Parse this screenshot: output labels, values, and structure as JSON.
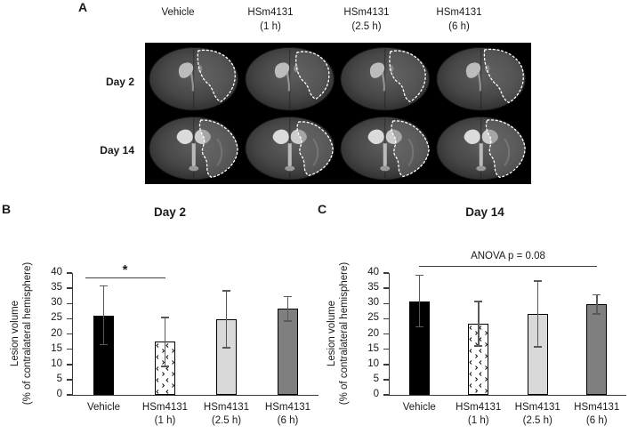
{
  "figure": {
    "panel_a": {
      "label": "A",
      "column_headers": [
        {
          "line1": "Vehicle",
          "line2": ""
        },
        {
          "line1": "HSm4131",
          "line2": "(1 h)"
        },
        {
          "line1": "HSm4131",
          "line2": "(2.5 h)"
        },
        {
          "line1": "HSm4131",
          "line2": "(6 h)"
        }
      ],
      "row_labels": [
        "Day 2",
        "Day 14"
      ]
    },
    "panel_b_label": "B",
    "panel_c_label": "C"
  },
  "colors": {
    "background": "#ffffff",
    "mri_background": "#000000",
    "lesion_outline": "#ffffff",
    "bar_vehicle": "#000000",
    "bar_1h_fill": "#ffffff",
    "bar_2_5h": "#d9d9d9",
    "bar_6h": "#7f7f7f",
    "axis": "#3a3a3a",
    "error_bar": "#595959",
    "text": "#000000"
  },
  "chart_data": [
    {
      "type": "bar",
      "panel": "B",
      "title": "Day 2",
      "ylabel_line1": "Lesion volume",
      "ylabel_line2": "(% of contralateral hemisphere)",
      "ylim": [
        0,
        40
      ],
      "yticks": [
        0,
        5,
        10,
        15,
        20,
        25,
        30,
        35,
        40
      ],
      "grid": false,
      "legend": null,
      "categories": [
        "Vehicle",
        "HSm4131 (1 h)",
        "HSm4131 (2.5 h)",
        "HSm4131 (6 h)"
      ],
      "values": [
        26.1,
        17.4,
        24.8,
        28.3
      ],
      "errors": [
        9.6,
        8.0,
        9.3,
        4.0
      ],
      "bar_styles": [
        "black",
        "pattern",
        "lightgray",
        "gray"
      ],
      "annotation": {
        "label": "*",
        "from_index": 0,
        "to_index": 1,
        "y_value": 38.5
      }
    },
    {
      "type": "bar",
      "panel": "C",
      "title": "Day 14",
      "ylabel_line1": "Lesion volume",
      "ylabel_line2": "(% of contralateral hemisphere)",
      "ylim": [
        0,
        40
      ],
      "yticks": [
        0,
        5,
        10,
        15,
        20,
        25,
        30,
        35,
        40
      ],
      "grid": false,
      "legend": null,
      "categories": [
        "Vehicle",
        "HSm4131 (1 h)",
        "HSm4131 (2.5 h)",
        "HSm4131 (6 h)"
      ],
      "values": [
        30.8,
        23.3,
        26.6,
        29.7
      ],
      "errors": [
        8.5,
        7.3,
        10.8,
        3.2
      ],
      "bar_styles": [
        "black",
        "pattern",
        "lightgray",
        "gray"
      ],
      "annotation": {
        "label": "ANOVA p = 0.08",
        "from_index": 0,
        "to_index": 3,
        "y_value": 42.3
      }
    }
  ]
}
